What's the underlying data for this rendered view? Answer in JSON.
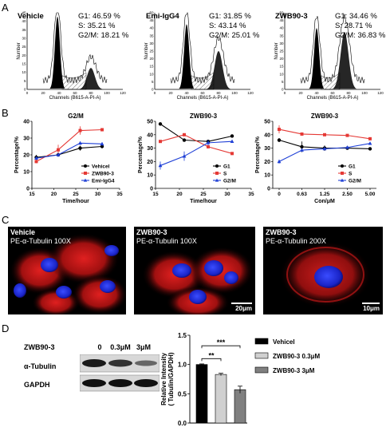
{
  "panels": {
    "a": "A",
    "b": "B",
    "c": "C",
    "d": "D"
  },
  "panel_a": [
    {
      "title": "Vehicle",
      "g1": "G1: 46.59 %",
      "s": "S: 35.21 %",
      "g2m": "G2/M: 18.21 %"
    },
    {
      "title": "Emi-IgG4",
      "g1": "G1: 31.85 %",
      "s": "S: 43.14 %",
      "g2m": "G2/M: 25.01 %"
    },
    {
      "title": "ZWB90-3",
      "g1": "G1: 34.46 %",
      "s": "S: 28.71 %",
      "g2m": "G2/M: 36.83 %"
    }
  ],
  "panel_a_axes": {
    "ylabel": "Number",
    "xlabel": "Channels (B615-A-PI-A)",
    "xticks": [
      "0",
      "20",
      "40",
      "60",
      "80",
      "100",
      "120"
    ],
    "yticks_vehicle": [
      "0",
      "5",
      "10",
      "15",
      "20",
      "25",
      "30",
      "35",
      "40",
      "45"
    ],
    "yticks_emi": [
      "0",
      "5",
      "10",
      "15",
      "20",
      "25",
      "30",
      "35",
      "40",
      "45",
      "50"
    ],
    "yticks_zwb": [
      "0",
      "5",
      "10",
      "15",
      "20",
      "25",
      "30",
      "35",
      "40",
      "45",
      "50"
    ]
  },
  "panel_c": [
    {
      "title": "Vehicle",
      "stain": "PE-α-Tubulin  100X",
      "scale": ""
    },
    {
      "title": "ZWB90-3",
      "stain": "PE-α-Tubulin  100X",
      "scale": "20μm"
    },
    {
      "title": "ZWB90-3",
      "stain": "PE-α-Tubulin  200X",
      "scale": "10μm"
    }
  ],
  "panel_d": {
    "blot": {
      "compound": "ZWB90-3",
      "lanes": [
        "0",
        "0.3μM",
        "3μM"
      ],
      "rows": [
        "α-Tubulin",
        "GAPDH"
      ]
    }
  },
  "chart_data": [
    {
      "type": "line",
      "title": "G2/M",
      "xlabel": "Time/hour",
      "ylabel": "Percentage/%",
      "xlim": [
        15,
        35
      ],
      "ylim": [
        0,
        40
      ],
      "xticks": [
        15,
        20,
        25,
        30,
        35
      ],
      "yticks": [
        0,
        10,
        20,
        30,
        40
      ],
      "legend": "bottom-right",
      "series": [
        {
          "name": "Vehicel",
          "color": "#000000",
          "marker": "circle",
          "x": [
            16,
            21,
            26,
            31
          ],
          "y": [
            18.5,
            20,
            24,
            25
          ],
          "err": [
            1.5,
            1,
            1.5,
            1
          ]
        },
        {
          "name": "ZWB90-3",
          "color": "#e53935",
          "marker": "square",
          "x": [
            16,
            21,
            26,
            31
          ],
          "y": [
            16,
            23,
            34.5,
            35
          ],
          "err": [
            1,
            3,
            2.5,
            0.5
          ]
        },
        {
          "name": "Emi-IgG4",
          "color": "#1e3fd6",
          "marker": "triangle",
          "x": [
            16,
            21,
            26,
            31
          ],
          "y": [
            18,
            20,
            27,
            26.5
          ],
          "err": [
            1,
            1,
            1,
            1
          ]
        }
      ]
    },
    {
      "type": "line",
      "title": "ZWB90-3",
      "xlabel": "Time/hour",
      "ylabel": "Percentage/%",
      "xlim": [
        15,
        35
      ],
      "ylim": [
        0,
        50
      ],
      "xticks": [
        15,
        20,
        25,
        30,
        35
      ],
      "yticks": [
        0,
        10,
        20,
        30,
        40,
        50
      ],
      "legend": "bottom-right",
      "series": [
        {
          "name": "G1",
          "color": "#000000",
          "marker": "circle",
          "x": [
            16,
            21,
            26,
            31
          ],
          "y": [
            48,
            36,
            35,
            39
          ],
          "err": [
            0.5,
            0.5,
            0.5,
            0.5
          ]
        },
        {
          "name": "S",
          "color": "#e53935",
          "marker": "square",
          "x": [
            16,
            21,
            26,
            31
          ],
          "y": [
            35,
            40,
            31,
            26
          ],
          "err": [
            0.5,
            0.5,
            0.5,
            0.5
          ]
        },
        {
          "name": "G2/M",
          "color": "#1e3fd6",
          "marker": "triangle",
          "x": [
            16,
            21,
            26,
            31
          ],
          "y": [
            17,
            24,
            34,
            35
          ],
          "err": [
            3,
            3.5,
            2,
            0.5
          ]
        }
      ]
    },
    {
      "type": "line",
      "title": "ZWB90-3",
      "xlabel": "Con/μM",
      "ylabel": "Percentage/%",
      "xcategories": [
        "0",
        "0.63",
        "1.25",
        "2.50",
        "5.00"
      ],
      "ylim": [
        0,
        50
      ],
      "yticks": [
        0,
        10,
        20,
        30,
        40,
        50
      ],
      "legend": "bottom-right",
      "series": [
        {
          "name": "G1",
          "color": "#000000",
          "marker": "circle",
          "y": [
            36,
            31,
            30,
            30,
            29.5
          ],
          "err": [
            1.5,
            4,
            2,
            1,
            0.5
          ]
        },
        {
          "name": "S",
          "color": "#e53935",
          "marker": "square",
          "y": [
            44,
            40.5,
            40,
            39.5,
            37
          ],
          "err": [
            3,
            1,
            0.5,
            0.5,
            0.5
          ]
        },
        {
          "name": "G2/M",
          "color": "#1e3fd6",
          "marker": "triangle",
          "y": [
            20,
            28.5,
            29.5,
            30.5,
            33.5
          ],
          "err": [
            1.5,
            1,
            0.5,
            1,
            0.5
          ]
        }
      ]
    },
    {
      "type": "bar",
      "ylabel": "Relative Intensity\n( Tubulin/GAPDH)",
      "ylim": [
        0,
        1.5
      ],
      "yticks": [
        "0.0",
        "0.5",
        "1.0",
        "1.5"
      ],
      "categories": [
        "Vehicel",
        "ZWB90-3 0.3μM",
        "ZWB90-3 3μM"
      ],
      "values": [
        1.0,
        0.83,
        0.57
      ],
      "err": [
        0.01,
        0.02,
        0.06
      ],
      "colors": [
        "#000000",
        "#d0d0d0",
        "#808080"
      ],
      "significance": [
        {
          "from": 0,
          "to": 1,
          "label": "**"
        },
        {
          "from": 0,
          "to": 2,
          "label": "***"
        }
      ],
      "legend": "right"
    }
  ]
}
